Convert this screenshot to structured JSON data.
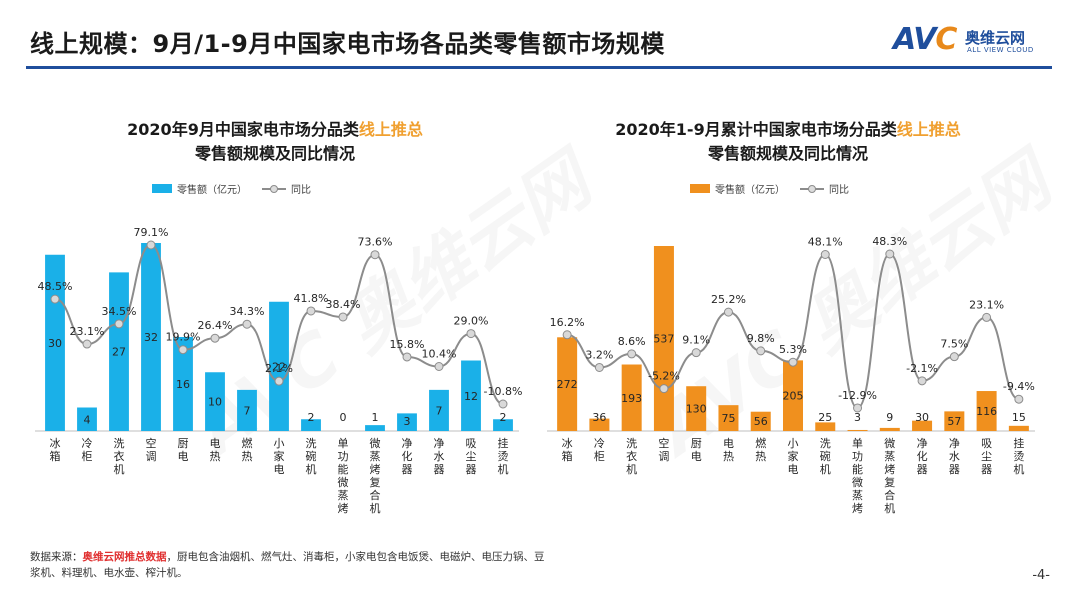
{
  "header": {
    "title": "线上规模：9月/1-9月中国家电市场各品类零售额市场规模",
    "logo_avc": "AVC",
    "logo_cn": "奥维云网",
    "logo_en": "ALL VIEW CLOUD"
  },
  "charts": [
    {
      "title_line1_prefix": "2020年9月中国家电市场分品类",
      "title_line1_highlight": "线上推总",
      "title_line2": "零售额规模及同比情况"
    },
    {
      "title_line1_prefix": "2020年1-9月累计中国家电市场分品类",
      "title_line1_highlight": "线上推总",
      "title_line2": "零售额规模及同比情况"
    }
  ],
  "chart_data": [
    {
      "type": "bar",
      "title": "2020年9月中国家电市场分品类线上推总零售额规模及同比情况",
      "categories": [
        "冰箱",
        "冷柜",
        "洗衣机",
        "空调",
        "厨电",
        "电热",
        "燃热",
        "小家电",
        "洗碗机",
        "单功能微蒸烤",
        "微蒸烤复合机",
        "净化器",
        "净水器",
        "吸尘器",
        "挂烫机"
      ],
      "series": [
        {
          "name": "零售额（亿元）",
          "type": "bar",
          "color": "#1ab0e8",
          "values": [
            30,
            4,
            27,
            32,
            16,
            10,
            7,
            22,
            2,
            0,
            1,
            3,
            7,
            12,
            2
          ]
        },
        {
          "name": "同比",
          "type": "line",
          "color": "#8c8c8c",
          "values": [
            48.5,
            23.1,
            34.5,
            79.1,
            19.9,
            26.4,
            34.3,
            2.1,
            41.8,
            38.4,
            73.6,
            15.8,
            10.4,
            29.0,
            -10.8
          ]
        }
      ],
      "bar_labels": [
        "30",
        "4",
        "27",
        "32",
        "16",
        "10",
        "7",
        "22",
        "2",
        "0",
        "1",
        "3",
        "7",
        "12",
        "2"
      ],
      "line_labels": [
        "48.5%",
        "23.1%",
        "34.5%",
        "79.1%",
        "19.9%",
        "26.4%",
        "34.3%",
        "2.1%",
        "41.8%",
        "38.4%",
        "73.6%",
        "15.8%",
        "10.4%",
        "29.0%",
        "-10.8%"
      ],
      "legend": {
        "bar": "零售额（亿元）",
        "line": "同比"
      }
    },
    {
      "type": "bar",
      "title": "2020年1-9月累计中国家电市场分品类线上推总零售额规模及同比情况",
      "categories": [
        "冰箱",
        "冷柜",
        "洗衣机",
        "空调",
        "厨电",
        "电热",
        "燃热",
        "小家电",
        "洗碗机",
        "单功能微蒸烤",
        "微蒸烤复合机",
        "净化器",
        "净水器",
        "吸尘器",
        "挂烫机"
      ],
      "series": [
        {
          "name": "零售额（亿元）",
          "type": "bar",
          "color": "#f0901e",
          "values": [
            272,
            36,
            193,
            537,
            130,
            75,
            56,
            205,
            25,
            3,
            9,
            30,
            57,
            116,
            15
          ]
        },
        {
          "name": "同比",
          "type": "line",
          "color": "#8c8c8c",
          "values": [
            16.2,
            3.2,
            8.6,
            -5.2,
            9.1,
            25.2,
            9.8,
            5.3,
            48.1,
            -12.9,
            48.3,
            -2.1,
            7.5,
            23.1,
            -9.4
          ]
        }
      ],
      "bar_labels": [
        "272",
        "36",
        "193",
        "537",
        "130",
        "75",
        "56",
        "205",
        "25",
        "3",
        "9",
        "30",
        "57",
        "116",
        "15"
      ],
      "line_labels": [
        "16.2%",
        "3.2%",
        "8.6%",
        "-5.2%",
        "9.1%",
        "25.2%",
        "9.8%",
        "5.3%",
        "48.1%",
        "-12.9%",
        "48.3%",
        "-2.1%",
        "7.5%",
        "23.1%",
        "-9.4%"
      ],
      "legend": {
        "bar": "零售额（亿元）",
        "line": "同比"
      }
    }
  ],
  "footnote": {
    "prefix": "数据来源：",
    "highlight": "奥维云网推总数据",
    "rest": "，厨电包含油烟机、燃气灶、消毒柜，小家电包含电饭煲、电磁炉、电压力锅、豆浆机、料理机、电水壶、榨汁机。"
  },
  "page_number": "-4-",
  "watermark_text": "AVC 奥维云网"
}
